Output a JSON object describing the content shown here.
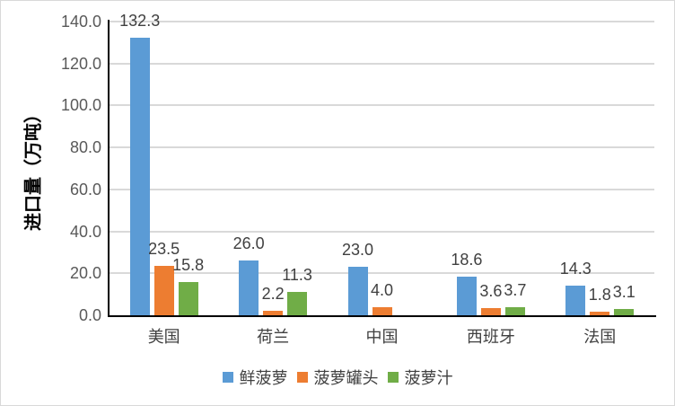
{
  "chart_data": {
    "type": "bar",
    "title": "",
    "ylabel": "进口量（万吨）",
    "xlabel": "",
    "categories": [
      "美国",
      "荷兰",
      "中国",
      "西班牙",
      "法国"
    ],
    "series": [
      {
        "name": "鲜菠萝",
        "color": "#5B9BD5",
        "values": [
          132.3,
          26.0,
          23.0,
          18.6,
          14.3
        ]
      },
      {
        "name": "菠萝罐头",
        "color": "#ED7D31",
        "values": [
          23.5,
          2.2,
          4.0,
          3.6,
          1.8
        ]
      },
      {
        "name": "菠萝汁",
        "color": "#70AD47",
        "values": [
          15.8,
          11.3,
          0,
          3.7,
          3.1
        ]
      }
    ],
    "ylim": [
      0,
      140
    ],
    "ytick_step": 20,
    "yticks": [
      "0.0",
      "20.0",
      "40.0",
      "60.0",
      "80.0",
      "100.0",
      "120.0",
      "140.0"
    ],
    "grid": "horizontal",
    "legend_position": "bottom",
    "data_labels": true,
    "label_decimals": 1
  },
  "colors": {
    "gridline": "#D9D9D9",
    "axis": "#000000",
    "tick_label": "#595959",
    "data_label": "#404040",
    "category_label": "#404040",
    "border": "#D9D9D9",
    "background": "#FFFFFF"
  }
}
